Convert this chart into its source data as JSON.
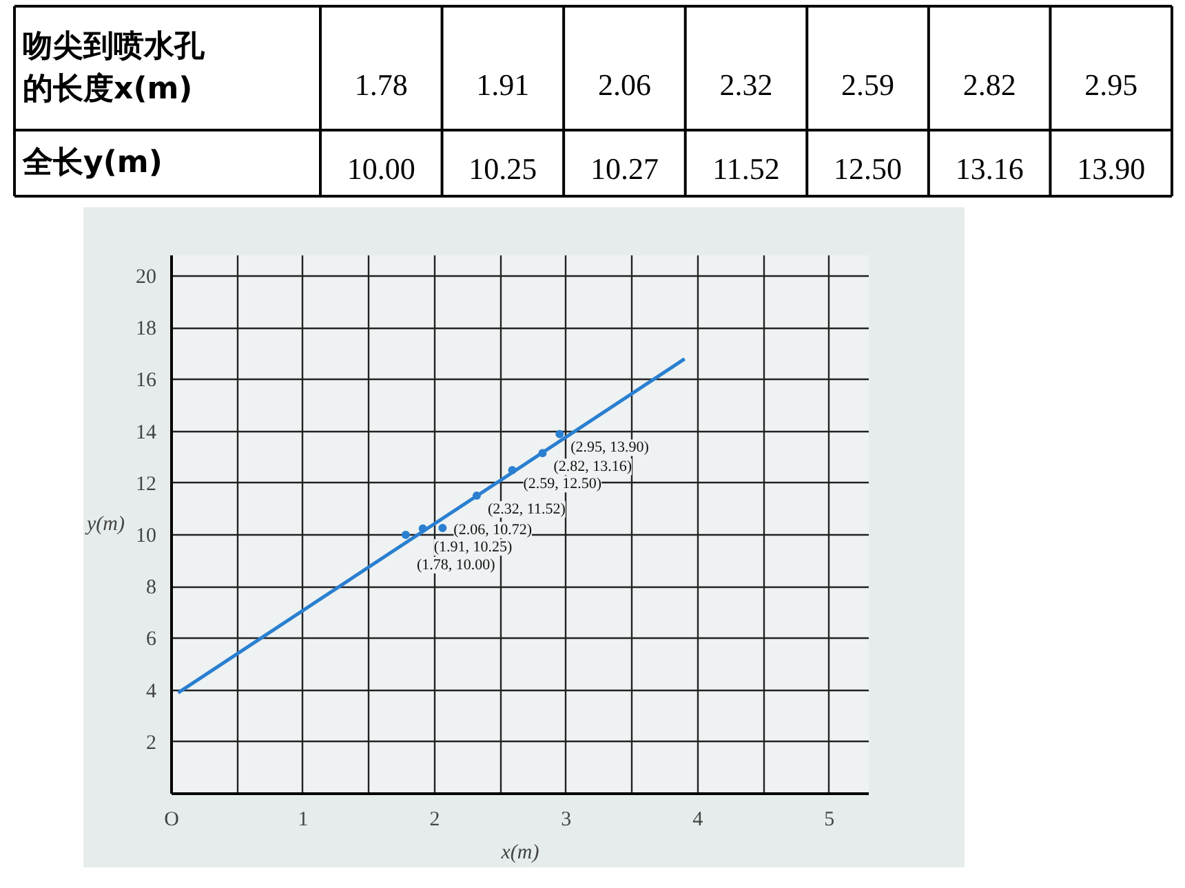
{
  "chart_data": [
    {
      "type": "other",
      "annotations": [
        "吻尖到喷水孔的长度x(m)",
        "1.78",
        "1.91",
        "2.06",
        "2.32",
        "2.59",
        "2.82",
        "2.95",
        "全长y(m)",
        "10.00",
        "10.25",
        "10.27",
        "11.52",
        "12.50",
        "13.16",
        "13.90"
      ]
    },
    {
      "type": "scatter",
      "xlabel": "x(m)",
      "ylabel": "y(m)",
      "xlim": [
        0,
        5.3
      ],
      "ylim": [
        0,
        20.8
      ],
      "xticks": [
        {
          "value": 0,
          "label": "O"
        },
        {
          "value": 0.5,
          "label": null
        },
        1,
        {
          "value": 1.5,
          "label": null
        },
        2,
        {
          "value": 2.5,
          "label": null
        },
        3,
        {
          "value": 3.5,
          "label": null
        },
        4,
        {
          "value": 4.5,
          "label": null
        },
        5
      ],
      "yticks": [
        {
          "value": 0,
          "label": null
        },
        2,
        4,
        6,
        8,
        10,
        12,
        14,
        16,
        18,
        20
      ],
      "grid": true,
      "marker": "circle",
      "series": [
        {
          "type": "line",
          "marker": "none",
          "color": "#2a7fd0",
          "x": [
            0.05,
            3.9
          ],
          "values": [
            3.9,
            16.8
          ]
        },
        {
          "color": "#2a7fd0",
          "x": [
            1.78,
            1.91,
            2.06,
            2.32,
            2.59,
            2.82,
            2.95
          ],
          "values": [
            10.0,
            10.25,
            10.27,
            11.52,
            12.5,
            13.16,
            13.9
          ]
        }
      ],
      "annotations": [
        {
          "text": "(1.78, 10.00)",
          "x": 1.78,
          "y": 10.0
        },
        {
          "text": "(1.91, 10.25)",
          "x": 1.91,
          "y": 10.25
        },
        {
          "text": "(2.06, 10.72)",
          "x": 2.06,
          "y": 10.72
        },
        {
          "text": "(2.32, 11.52)",
          "x": 2.32,
          "y": 11.52
        },
        {
          "text": "(2.59, 12.50)",
          "x": 2.59,
          "y": 12.5
        },
        {
          "text": "(2.82, 13.16)",
          "x": 2.82,
          "y": 13.16
        },
        {
          "text": "(2.95, 13.90)",
          "x": 2.95,
          "y": 13.9
        }
      ]
    }
  ]
}
